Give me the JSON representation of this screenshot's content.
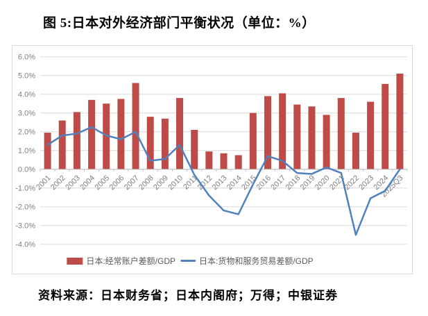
{
  "title": "图 5:日本对外经济部门平衡状况（单位：%）",
  "source": "资料来源：日本财务省；日本内阁府；万得；中银证券",
  "colors": {
    "bar": "#be4b48",
    "line": "#4f81bd",
    "gridline": "#d9d9d9",
    "axis": "#bfbfbf",
    "tick_label": "#7f7f7f",
    "legend_text": "#595959"
  },
  "legend": [
    {
      "label": "日本:经常账户差额/GDP",
      "type": "bar",
      "color": "#be4b48"
    },
    {
      "label": "日本:货物和服务贸易差额/GDP",
      "type": "line",
      "color": "#4f81bd"
    }
  ],
  "yticks": [
    "6.0%",
    "5.0%",
    "4.0%",
    "3.0%",
    "2.0%",
    "1.0%",
    "0.0%",
    "-1.0%",
    "-2.0%",
    "-3.0%",
    "-4.0%"
  ],
  "chart_data": {
    "type": "bar",
    "title": "图 5:日本对外经济部门平衡状况（单位：%）",
    "xlabel": "",
    "ylabel": "",
    "ylim": [
      -4.0,
      6.0
    ],
    "ytick_step": 1.0,
    "grid": true,
    "legend_position": "bottom",
    "categories": [
      "2001",
      "2002",
      "2003",
      "2004",
      "2005",
      "2006",
      "2007",
      "2008",
      "2009",
      "2010",
      "2011",
      "2012",
      "2013",
      "2014",
      "2015",
      "2016",
      "2017",
      "2018",
      "2019",
      "2020",
      "2021",
      "2022",
      "2023",
      "2024",
      "2025Q3"
    ],
    "series": [
      {
        "name": "日本:经常账户差额/GDP",
        "type": "bar",
        "color": "#be4b48",
        "values": [
          1.95,
          2.6,
          3.05,
          3.7,
          3.5,
          3.75,
          4.6,
          2.8,
          2.7,
          3.8,
          2.1,
          0.95,
          0.85,
          0.75,
          3.0,
          3.9,
          4.05,
          3.45,
          3.35,
          2.9,
          3.8,
          1.95,
          3.6,
          4.55,
          5.1
        ]
      },
      {
        "name": "日本:货物和服务贸易差额/GDP",
        "type": "line",
        "color": "#4f81bd",
        "values": [
          1.3,
          1.8,
          1.9,
          2.25,
          1.8,
          1.6,
          2.0,
          0.45,
          0.55,
          1.3,
          -0.3,
          -1.4,
          -2.2,
          -2.4,
          -0.8,
          0.7,
          0.45,
          -0.2,
          -0.25,
          0.1,
          -0.2,
          -3.5,
          -1.55,
          -1.15,
          0.0
        ]
      }
    ]
  }
}
